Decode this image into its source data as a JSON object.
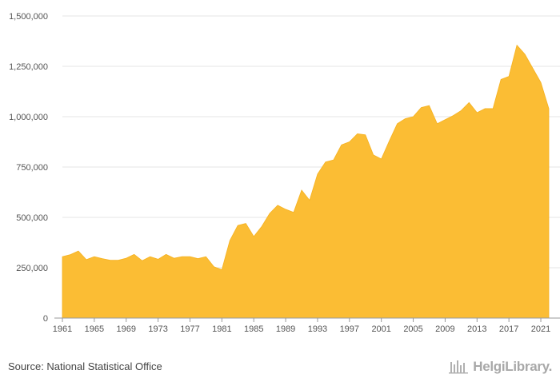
{
  "chart_data": {
    "type": "area",
    "title": "",
    "xlabel": "",
    "ylabel": "",
    "xlim": [
      1961,
      2022
    ],
    "ylim": [
      0,
      1500000
    ],
    "y_ticks": [
      {
        "value": 0,
        "label": "0"
      },
      {
        "value": 250000,
        "label": "250,000"
      },
      {
        "value": 500000,
        "label": "500,000"
      },
      {
        "value": 750000,
        "label": "750,000"
      },
      {
        "value": 1000000,
        "label": "1,000,000"
      },
      {
        "value": 1250000,
        "label": "1,250,000"
      },
      {
        "value": 1500000,
        "label": "1,500,000"
      }
    ],
    "x_ticks": [
      "1961",
      "1965",
      "1969",
      "1973",
      "1977",
      "1981",
      "1985",
      "1989",
      "1993",
      "1997",
      "2001",
      "2005",
      "2009",
      "2013",
      "2017",
      "2021"
    ],
    "grid": "horizontal",
    "fill_color": "#FBBD34",
    "series": [
      {
        "x": [
          1961,
          1962,
          1963,
          1964,
          1965,
          1966,
          1967,
          1968,
          1969,
          1970,
          1971,
          1972,
          1973,
          1974,
          1975,
          1976,
          1977,
          1978,
          1979,
          1980,
          1981,
          1982,
          1983,
          1984,
          1985,
          1986,
          1987,
          1988,
          1989,
          1990,
          1991,
          1992,
          1993,
          1994,
          1995,
          1996,
          1997,
          1998,
          1999,
          2000,
          2001,
          2002,
          2003,
          2004,
          2005,
          2006,
          2007,
          2008,
          2009,
          2010,
          2011,
          2012,
          2013,
          2014,
          2015,
          2016,
          2017,
          2018,
          2019,
          2020,
          2021,
          2022
        ],
        "values": [
          305000,
          315000,
          333000,
          290000,
          305000,
          295000,
          287000,
          287000,
          297000,
          316000,
          285000,
          305000,
          292000,
          316000,
          297000,
          305000,
          305000,
          295000,
          305000,
          255000,
          240000,
          385000,
          460000,
          470000,
          405000,
          455000,
          520000,
          560000,
          540000,
          525000,
          635000,
          585000,
          715000,
          775000,
          785000,
          860000,
          875000,
          915000,
          910000,
          810000,
          790000,
          880000,
          965000,
          990000,
          1000000,
          1045000,
          1055000,
          965000,
          985000,
          1005000,
          1030000,
          1070000,
          1020000,
          1040000,
          1040000,
          1185000,
          1200000,
          1355000,
          1310000,
          1240000,
          1170000,
          1040000
        ]
      }
    ]
  },
  "footer": {
    "source": "Source: National Statistical Office",
    "logo_text": "HelgiLibrary.",
    "logo_icon": "helgi-library-icon"
  }
}
